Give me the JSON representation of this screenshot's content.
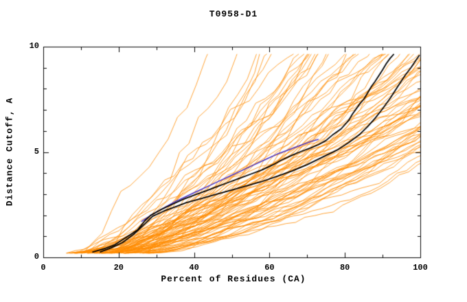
{
  "chart_data": {
    "type": "line",
    "title": "T0958-D1",
    "xlabel": "Percent of Residues (CA)",
    "ylabel": "Distance Cutoff, A",
    "xlim": [
      0,
      100
    ],
    "ylim": [
      0,
      10
    ],
    "x_ticks": [
      0,
      20,
      40,
      60,
      80,
      100
    ],
    "x_minor_step": 10,
    "y_ticks": [
      0,
      5,
      10
    ],
    "y_minor_step": 1,
    "grid": false,
    "legend": "none",
    "frame_color": "#000000",
    "series": [
      {
        "name": "highlighted-model-1",
        "color": "#000000",
        "width": 1.8,
        "points": [
          [
            13,
            0.25
          ],
          [
            16,
            0.4
          ],
          [
            19,
            0.6
          ],
          [
            22,
            0.95
          ],
          [
            25,
            1.3
          ],
          [
            27,
            1.75
          ],
          [
            28.5,
            2.0
          ],
          [
            31,
            2.25
          ],
          [
            34,
            2.5
          ],
          [
            37,
            2.75
          ],
          [
            40,
            2.95
          ],
          [
            43,
            3.15
          ],
          [
            46,
            3.35
          ],
          [
            49,
            3.55
          ],
          [
            52,
            3.75
          ],
          [
            55,
            3.95
          ],
          [
            58,
            4.15
          ],
          [
            61,
            4.4
          ],
          [
            63,
            4.6
          ],
          [
            66,
            4.85
          ],
          [
            68,
            5.0
          ],
          [
            71,
            5.2
          ],
          [
            73,
            5.35
          ],
          [
            75,
            5.55
          ],
          [
            77,
            5.85
          ],
          [
            79,
            6.1
          ],
          [
            81,
            6.5
          ],
          [
            82,
            6.8
          ],
          [
            84,
            7.3
          ],
          [
            85,
            7.5
          ],
          [
            87,
            8.1
          ],
          [
            88,
            8.35
          ],
          [
            90,
            8.9
          ],
          [
            91,
            9.2
          ],
          [
            92,
            9.45
          ],
          [
            93,
            9.65
          ]
        ]
      },
      {
        "name": "highlighted-model-2",
        "color": "#000000",
        "width": 1.8,
        "points": [
          [
            15,
            0.25
          ],
          [
            18,
            0.45
          ],
          [
            21,
            0.7
          ],
          [
            24,
            1.1
          ],
          [
            27,
            1.6
          ],
          [
            29,
            1.95
          ],
          [
            32,
            2.2
          ],
          [
            35,
            2.4
          ],
          [
            38,
            2.6
          ],
          [
            42,
            2.8
          ],
          [
            46,
            3.0
          ],
          [
            50,
            3.2
          ],
          [
            54,
            3.4
          ],
          [
            58,
            3.6
          ],
          [
            62,
            3.85
          ],
          [
            66,
            4.1
          ],
          [
            70,
            4.4
          ],
          [
            74,
            4.75
          ],
          [
            78,
            5.1
          ],
          [
            81,
            5.45
          ],
          [
            84,
            5.85
          ],
          [
            86,
            6.2
          ],
          [
            88,
            6.6
          ],
          [
            90,
            7.05
          ],
          [
            92,
            7.55
          ],
          [
            94,
            8.1
          ],
          [
            96,
            8.65
          ],
          [
            97.5,
            9.0
          ],
          [
            99,
            9.4
          ],
          [
            99.8,
            9.6
          ]
        ]
      },
      {
        "name": "special-model-blue",
        "color": "#4433CC",
        "width": 1.5,
        "points": [
          [
            26,
            1.7
          ],
          [
            29,
            2.05
          ],
          [
            32,
            2.35
          ],
          [
            35,
            2.65
          ],
          [
            38,
            2.9
          ],
          [
            41,
            3.15
          ],
          [
            44,
            3.4
          ],
          [
            47,
            3.65
          ],
          [
            50,
            3.9
          ],
          [
            53,
            4.15
          ],
          [
            56,
            4.4
          ],
          [
            59,
            4.65
          ],
          [
            62,
            4.9
          ],
          [
            65,
            5.1
          ],
          [
            68,
            5.3
          ],
          [
            71,
            5.5
          ],
          [
            73,
            5.6
          ]
        ]
      }
    ],
    "ensemble": {
      "name": "other-server-models",
      "color": "#FF8C00",
      "line_width": 0.8,
      "count": 85,
      "seed": 987341,
      "x_start_range": [
        6,
        30
      ],
      "x_span_range": [
        32,
        130
      ],
      "gamma_range": [
        1.0,
        1.9
      ],
      "y_start": 0.2,
      "y_max": 9.65,
      "x_step": 2.5,
      "increment_jitter": [
        0.3,
        1.7
      ]
    }
  }
}
